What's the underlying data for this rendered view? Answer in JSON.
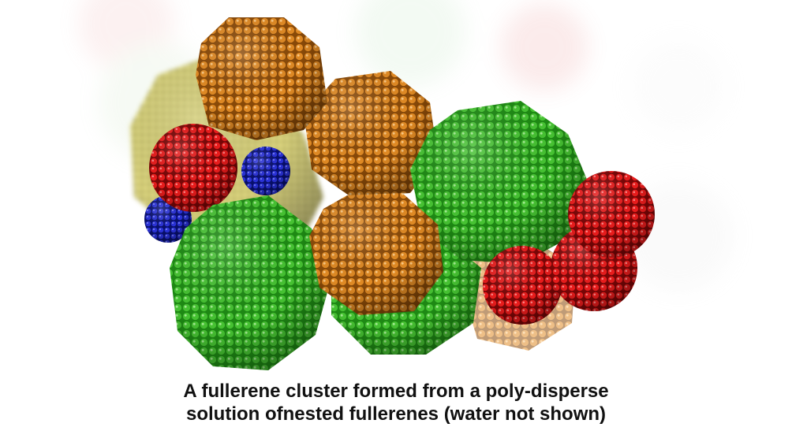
{
  "caption": {
    "line1": "A fullerene cluster formed from a poly-disperse",
    "line2": "solution ofnested fullerenes (water not shown)"
  },
  "colors": {
    "green": "#2ea81e",
    "orange": "#d9801c",
    "red": "#e01515",
    "blue": "#1a22c8",
    "yellow": "#d8d060"
  }
}
